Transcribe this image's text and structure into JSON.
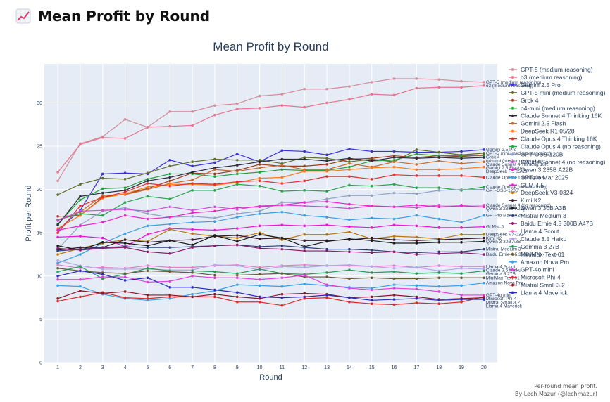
{
  "page": {
    "title": "Mean Profit by Round",
    "icon": "chart-increasing-icon"
  },
  "footer": {
    "line1": "Per-round mean profit.",
    "line2": "By Lech Mazur (@lechmazur)"
  },
  "chart_data": {
    "type": "line",
    "title": "Mean Profit by Round",
    "xlabel": "Round",
    "ylabel": "Profit per Round",
    "x": [
      1,
      2,
      3,
      4,
      5,
      6,
      7,
      8,
      9,
      10,
      11,
      12,
      13,
      14,
      15,
      16,
      17,
      18,
      19,
      20
    ],
    "xlim": [
      0.4,
      20.6
    ],
    "ylim": [
      0,
      34.5
    ],
    "yticks": [
      0,
      5,
      10,
      15,
      20,
      25,
      30
    ],
    "grid": true,
    "background": "#e5ecf6",
    "legend_position": "right",
    "series": [
      {
        "name": "GPT-5 (medium reasoning)",
        "label": "GPT-5 (medium reasoning)",
        "color": "#d28d9b",
        "values": [
          21.0,
          25.3,
          26.1,
          28.1,
          27.2,
          29.0,
          29.0,
          29.7,
          29.9,
          30.8,
          31.0,
          31.6,
          31.6,
          31.9,
          32.4,
          32.8,
          32.8,
          32.7,
          32.5,
          32.4
        ]
      },
      {
        "name": "o3 (medium reasoning)",
        "label": "o3 (medium reasoning)",
        "color": "#e8748e",
        "values": [
          22.0,
          25.2,
          26.0,
          25.9,
          27.2,
          27.3,
          27.4,
          28.6,
          29.3,
          29.4,
          29.7,
          29.5,
          30.0,
          30.4,
          31.0,
          30.9,
          31.7,
          31.8,
          31.8,
          32.0
        ]
      },
      {
        "name": "Gemini 2.5 Pro",
        "label": "Gemini 2.5 Pro",
        "color": "#3d30d6",
        "values": [
          15.3,
          17.6,
          21.8,
          21.9,
          21.8,
          23.4,
          22.7,
          23.1,
          24.1,
          23.2,
          24.5,
          24.4,
          24.0,
          24.7,
          24.4,
          24.4,
          24.3,
          24.3,
          24.4,
          24.6
        ]
      },
      {
        "name": "GPT-5 mini (medium reasoning)",
        "label": "GPT-5 mini (medium reasoning)",
        "color": "#606d2a",
        "values": [
          19.4,
          20.6,
          21.3,
          21.2,
          21.9,
          22.7,
          23.2,
          23.5,
          23.4,
          23.4,
          23.0,
          23.7,
          23.6,
          23.2,
          23.5,
          23.2,
          24.6,
          24.3,
          24.0,
          24.2
        ]
      },
      {
        "name": "Grok 4",
        "label": "Grok 4",
        "color": "#9b3d1f",
        "values": [
          16.9,
          17.0,
          19.1,
          19.5,
          20.1,
          21.0,
          21.9,
          21.8,
          22.2,
          22.9,
          22.7,
          22.7,
          22.9,
          23.5,
          23.6,
          23.9,
          23.7,
          23.9,
          23.8,
          24.0
        ]
      },
      {
        "name": "o4-mini (medium reasoning)",
        "label": "o4-mini (medium reasoning)",
        "color": "#22a23a",
        "values": [
          16.0,
          18.8,
          20.1,
          20.2,
          21.2,
          21.8,
          21.8,
          21.5,
          21.8,
          22.0,
          22.3,
          22.2,
          22.2,
          22.6,
          23.3,
          23.4,
          24.1,
          23.9,
          23.9,
          23.9
        ]
      },
      {
        "name": "Claude Sonnet 4 Thinking 16K",
        "label": "Claude Sonnet 4 Thinking 16K",
        "color": "#2b2b3b",
        "values": [
          15.9,
          19.2,
          19.6,
          19.9,
          21.0,
          21.4,
          22.0,
          22.5,
          22.8,
          23.2,
          23.5,
          23.5,
          23.3,
          23.6,
          23.3,
          23.7,
          23.6,
          23.7,
          23.6,
          23.7
        ]
      },
      {
        "name": "Gemini 2.5 Flash",
        "label": "Gemini 2.5 Flash",
        "color": "#c96a2d",
        "values": [
          16.5,
          17.4,
          19.3,
          19.4,
          20.0,
          20.7,
          21.1,
          22.3,
          22.1,
          22.5,
          22.8,
          22.3,
          22.3,
          23.0,
          22.6,
          23.2,
          22.9,
          23.3,
          23.0,
          23.2
        ]
      },
      {
        "name": "DeepSeek R1 05/28",
        "label": "DeepSeek R1 05/28",
        "color": "#ff7a1a",
        "values": [
          15.5,
          17.0,
          19.0,
          19.5,
          20.3,
          20.6,
          20.6,
          20.5,
          20.8,
          21.3,
          21.4,
          22.1,
          22.1,
          22.3,
          22.5,
          22.6,
          22.3,
          22.3,
          22.4,
          22.6
        ]
      },
      {
        "name": "Claude Opus 4 Thinking 16K",
        "label": "Claude Opus 4 Thinking 16K",
        "color": "#e62f2f",
        "values": [
          15.0,
          18.1,
          19.1,
          19.7,
          20.7,
          20.4,
          20.7,
          20.6,
          20.9,
          21.0,
          20.7,
          21.0,
          21.5,
          21.5,
          21.2,
          21.7,
          21.6,
          21.6,
          21.6,
          21.4
        ]
      },
      {
        "name": "Claude Opus 4 (no reasoning)",
        "label": "Claude Opus 4 (no reasoning)",
        "color": "#2aa34a",
        "values": [
          16.5,
          17.2,
          17.0,
          18.5,
          19.2,
          18.9,
          19.9,
          19.9,
          20.6,
          20.4,
          19.8,
          19.9,
          19.8,
          20.5,
          20.4,
          20.6,
          20.2,
          20.2,
          19.9,
          20.3
        ]
      },
      {
        "name": "GPT-OSS-120B",
        "label": "GPT-OSS-120B",
        "color": "#8ea0c4",
        "values": [
          13.1,
          15.9,
          17.5,
          17.9,
          17.2,
          16.8,
          16.9,
          16.7,
          17.2,
          17.5,
          18.5,
          18.5,
          18.9,
          19.3,
          19.3,
          19.6,
          19.5,
          19.9,
          20.0,
          20.0
        ]
      },
      {
        "name": "Claude Sonnet 4 (no reasoning)",
        "label": "Claude Sonnet 4 (no reasoning)",
        "color": "#d04ed0",
        "values": [
          16.4,
          17.5,
          17.6,
          17.7,
          17.5,
          18.0,
          17.6,
          18.0,
          17.7,
          18.1,
          18.2,
          18.1,
          18.0,
          17.8,
          18.1,
          18.0,
          17.9,
          18.2,
          18.2,
          18.2
        ]
      },
      {
        "name": "Qwen 3 235B A22B",
        "label": "Qwen 3 235B A22B",
        "color": "#f022c8",
        "values": [
          15.3,
          15.8,
          16.2,
          17.0,
          16.6,
          16.8,
          17.3,
          17.5,
          17.9,
          18.0,
          18.2,
          18.5,
          18.6,
          18.3,
          18.1,
          18.0,
          18.2,
          18.0,
          18.1,
          18.0
        ]
      },
      {
        "name": "GPT-4o Mar 2025",
        "label": "GPT-4o Mar 2025",
        "color": "#3a9ee0",
        "values": [
          11.5,
          12.5,
          13.8,
          14.9,
          15.8,
          16.0,
          16.2,
          16.3,
          16.8,
          17.2,
          17.4,
          17.0,
          16.8,
          16.5,
          16.7,
          16.6,
          17.0,
          16.6,
          16.2,
          17.0
        ]
      },
      {
        "name": "GLM-4.5",
        "label": "GLM-4.5",
        "color": "#e61ad6",
        "values": [
          14.5,
          14.6,
          14.4,
          13.4,
          14.8,
          15.5,
          15.4,
          15.3,
          15.5,
          15.8,
          15.9,
          15.8,
          15.9,
          15.7,
          15.6,
          15.9,
          15.8,
          15.6,
          15.6,
          15.7
        ]
      },
      {
        "name": "DeepSeek V3-0324",
        "label": "DeepSeek V3-0324",
        "color": "#b8780f",
        "values": [
          12.5,
          13.2,
          13.8,
          14.2,
          14.0,
          15.4,
          14.9,
          14.6,
          14.4,
          15.0,
          14.2,
          14.8,
          14.8,
          15.1,
          14.3,
          14.6,
          14.5,
          14.3,
          14.8,
          14.8
        ]
      },
      {
        "name": "Kimi K2",
        "label": "Kimi K2",
        "color": "#3a1a2a",
        "values": [
          13.0,
          13.3,
          13.3,
          14.2,
          13.9,
          14.1,
          14.2,
          14.6,
          14.7,
          14.3,
          14.4,
          14.1,
          14.1,
          14.2,
          14.4,
          14.2,
          14.1,
          14.2,
          14.3,
          14.4
        ]
      },
      {
        "name": "Qwen 3 30B A3B",
        "label": "Qwen 3 30B A3B",
        "color": "#1a1a1a",
        "values": [
          13.5,
          13.0,
          13.9,
          13.8,
          13.5,
          14.1,
          13.6,
          14.7,
          14.0,
          14.8,
          14.4,
          13.4,
          14.0,
          14.3,
          14.1,
          13.8,
          13.8,
          13.9,
          13.9,
          14.0
        ]
      },
      {
        "name": "Mistral Medium 3",
        "label": "Mistral Medium 3",
        "color": "#2d3f78",
        "values": [
          12.9,
          13.1,
          13.3,
          13.4,
          13.3,
          13.3,
          13.4,
          13.5,
          13.6,
          13.4,
          13.5,
          13.3,
          13.1,
          13.1,
          13.0,
          12.8,
          12.7,
          12.8,
          12.8,
          13.1
        ]
      },
      {
        "name": "Baidu Ernie 4.5 300B A47B",
        "label": "Baidu Ernie 4.5 300B A47B",
        "color": "#8a1a6a",
        "values": [
          13.2,
          13.0,
          13.2,
          13.3,
          12.8,
          12.6,
          13.3,
          13.5,
          13.6,
          13.2,
          13.1,
          12.9,
          12.9,
          12.8,
          12.7,
          12.8,
          12.5,
          12.6,
          12.7,
          12.5
        ]
      },
      {
        "name": "Llama 4 Scout",
        "label": "Llama 4 Scout",
        "color": "#e87ac8",
        "values": [
          11.3,
          10.9,
          11.0,
          10.9,
          11.2,
          11.0,
          11.0,
          11.2,
          11.3,
          11.0,
          11.2,
          11.3,
          11.2,
          11.2,
          11.1,
          11.2,
          11.0,
          11.2,
          11.1,
          11.1
        ]
      },
      {
        "name": "Claude 3.5 Haiku",
        "label": "Claude 3.5 Haiku",
        "color": "#b5a6e8",
        "values": [
          11.8,
          11.2,
          10.8,
          10.8,
          10.8,
          10.7,
          10.7,
          11.3,
          11.2,
          10.7,
          11.1,
          11.0,
          11.2,
          11.3,
          11.1,
          10.9,
          11.0,
          10.6,
          10.9,
          10.8
        ]
      },
      {
        "name": "Gemma 3 27B",
        "label": "Gemma 3 27B",
        "color": "#2a9a52",
        "values": [
          10.5,
          11.1,
          9.7,
          10.2,
          10.9,
          10.6,
          10.6,
          10.5,
          10.3,
          10.8,
          10.3,
          10.2,
          10.4,
          10.7,
          10.4,
          10.5,
          10.3,
          10.4,
          10.3,
          10.6
        ]
      },
      {
        "name": "MiniMax-Text-01",
        "label": "MiniMax-Text-01",
        "color": "#6a5a3a",
        "values": [
          10.9,
          10.6,
          10.4,
          10.3,
          10.6,
          10.5,
          10.4,
          10.1,
          10.1,
          10.2,
          10.3,
          9.9,
          9.9,
          9.7,
          9.8,
          9.7,
          9.7,
          9.8,
          9.8,
          9.8
        ]
      },
      {
        "name": "Amazon Nova Pro",
        "label": "Amazon Nova Pro",
        "color": "#3aa0e8",
        "values": [
          8.9,
          8.8,
          7.9,
          7.4,
          7.2,
          7.4,
          7.9,
          8.3,
          9.0,
          8.9,
          8.8,
          9.1,
          8.9,
          8.7,
          8.6,
          9.0,
          8.9,
          8.8,
          8.9,
          9.2
        ]
      },
      {
        "name": "GPT-4o mini",
        "label": "GPT-4o mini",
        "color": "#e040e0",
        "values": [
          9.6,
          9.6,
          9.9,
          9.9,
          9.3,
          9.4,
          10.0,
          9.8,
          9.8,
          9.6,
          9.8,
          10.1,
          9.0,
          8.6,
          8.4,
          8.6,
          8.5,
          8.2,
          7.8,
          7.8
        ]
      },
      {
        "name": "Microsoft Phi-4",
        "label": "Microsoft Phi-4",
        "color": "#e02a2a",
        "values": [
          7.1,
          7.6,
          8.1,
          7.5,
          7.4,
          7.6,
          7.6,
          7.6,
          7.0,
          7.0,
          6.6,
          7.4,
          7.5,
          7.0,
          6.8,
          6.7,
          6.9,
          6.8,
          7.0,
          7.6
        ]
      },
      {
        "name": "Mistral Small 3.2",
        "label": "Mistral Small 3.2",
        "color": "#8a1a2a",
        "values": [
          7.4,
          8.3,
          8.0,
          8.2,
          7.8,
          7.8,
          7.6,
          7.9,
          7.6,
          7.4,
          7.9,
          8.0,
          7.9,
          7.5,
          7.6,
          7.8,
          7.6,
          7.3,
          7.4,
          7.5
        ]
      },
      {
        "name": "Llama 4 Maverick",
        "label": "Llama 4 Maverick",
        "color": "#2a2ab8",
        "values": [
          10.0,
          10.6,
          10.2,
          9.5,
          9.8,
          8.7,
          8.7,
          8.4,
          8.1,
          7.6,
          7.5,
          7.6,
          7.8,
          7.5,
          7.2,
          7.3,
          7.4,
          7.2,
          7.3,
          7.3
        ]
      }
    ]
  }
}
